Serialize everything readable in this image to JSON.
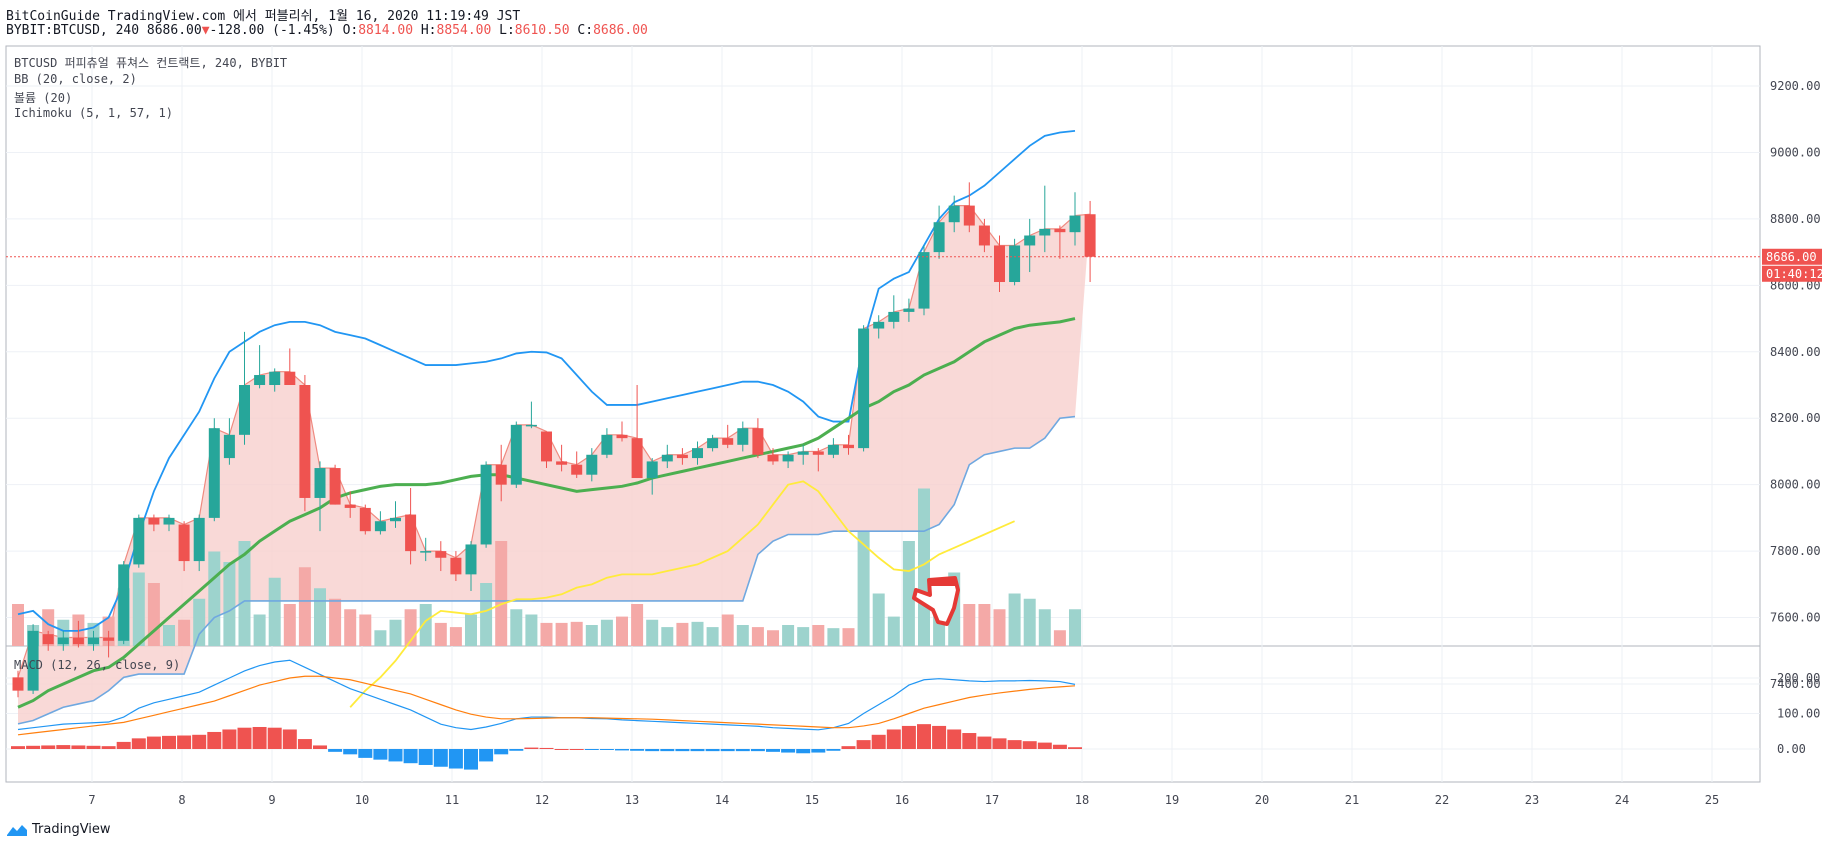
{
  "header": {
    "line1": "BitCoinGuide TradingView.com 에서 퍼블리쉬, 1월 16, 2020 11:19:49 JST",
    "symbol": "BYBIT:BTCUSD, 240",
    "last": "8686.00",
    "change": "-128.00 (-1.45%)",
    "o_label": "O:",
    "o": "8814.00",
    "h_label": "H:",
    "h": "8854.00",
    "l_label": "L:",
    "l": "8610.50",
    "c_label": "C:",
    "c": "8686.00",
    "down_arrow": "▼"
  },
  "legend": {
    "main": "BTCUSD 퍼피츄얼 퓨쳐스 컨트랙트, 240, BYBIT",
    "bb": "BB (20, close, 2)",
    "volume": "볼륨 (20)",
    "ichimoku": "Ichimoku (5, 1, 57, 1)",
    "macd": "MACD (12, 26, close, 9)"
  },
  "price_badge": "8686.00",
  "timer_badge": "01:40:12",
  "footer_brand": "TradingView",
  "colors": {
    "up": "#26a69a",
    "down": "#ef5350",
    "bb": "#2196f3",
    "ma": "#4caf50",
    "kumo_line": "#ef8a80",
    "kumo_fill": "#f8cfcd",
    "yellow": "#ffeb3b",
    "blue_line": "#6fa8e0",
    "vol_up": "#9dd3cd",
    "vol_down": "#f4a9a7",
    "macd": "#2196f3",
    "signal": "#ff7f0e",
    "hist_up": "#ef5350",
    "hist_down": "#2196f3"
  },
  "chart_data": {
    "type": "candlestick",
    "price_axis": {
      "ticks": [
        "9200.00",
        "9000.00",
        "8800.00",
        "8600.00",
        "8400.00",
        "8200.00",
        "8000.00",
        "7800.00",
        "7600.00",
        "7400.00"
      ]
    },
    "macd_axis": {
      "ticks": [
        "200.00",
        "100.00",
        "0.00"
      ]
    },
    "x_ticks": [
      "7",
      "8",
      "9",
      "10",
      "11",
      "12",
      "13",
      "14",
      "15",
      "16",
      "17",
      "18",
      "19",
      "20",
      "21",
      "22",
      "23",
      "24",
      "25"
    ],
    "candles": [
      {
        "o": 7420,
        "h": 7440,
        "l": 7360,
        "c": 7380
      },
      {
        "o": 7380,
        "h": 7580,
        "l": 7370,
        "c": 7560
      },
      {
        "o": 7550,
        "h": 7560,
        "l": 7500,
        "c": 7520
      },
      {
        "o": 7520,
        "h": 7560,
        "l": 7500,
        "c": 7540
      },
      {
        "o": 7540,
        "h": 7590,
        "l": 7510,
        "c": 7520
      },
      {
        "o": 7520,
        "h": 7560,
        "l": 7500,
        "c": 7540
      },
      {
        "o": 7540,
        "h": 7560,
        "l": 7480,
        "c": 7530
      },
      {
        "o": 7530,
        "h": 7770,
        "l": 7520,
        "c": 7760
      },
      {
        "o": 7760,
        "h": 7910,
        "l": 7750,
        "c": 7900
      },
      {
        "o": 7900,
        "h": 7910,
        "l": 7860,
        "c": 7880
      },
      {
        "o": 7880,
        "h": 7910,
        "l": 7860,
        "c": 7900
      },
      {
        "o": 7880,
        "h": 7890,
        "l": 7740,
        "c": 7770
      },
      {
        "o": 7770,
        "h": 7910,
        "l": 7740,
        "c": 7900
      },
      {
        "o": 7900,
        "h": 8200,
        "l": 7890,
        "c": 8170
      },
      {
        "o": 8080,
        "h": 8200,
        "l": 8060,
        "c": 8150
      },
      {
        "o": 8150,
        "h": 8460,
        "l": 8120,
        "c": 8300
      },
      {
        "o": 8300,
        "h": 8420,
        "l": 8290,
        "c": 8330
      },
      {
        "o": 8300,
        "h": 8350,
        "l": 8280,
        "c": 8340
      },
      {
        "o": 8340,
        "h": 8410,
        "l": 8300,
        "c": 8300
      },
      {
        "o": 8300,
        "h": 8330,
        "l": 7920,
        "c": 7960
      },
      {
        "o": 7960,
        "h": 8070,
        "l": 7860,
        "c": 8050
      },
      {
        "o": 8050,
        "h": 8060,
        "l": 7940,
        "c": 7940
      },
      {
        "o": 7940,
        "h": 7980,
        "l": 7900,
        "c": 7930
      },
      {
        "o": 7930,
        "h": 7940,
        "l": 7850,
        "c": 7860
      },
      {
        "o": 7860,
        "h": 7920,
        "l": 7850,
        "c": 7890
      },
      {
        "o": 7890,
        "h": 7950,
        "l": 7870,
        "c": 7900
      },
      {
        "o": 7910,
        "h": 7990,
        "l": 7760,
        "c": 7800
      },
      {
        "o": 7800,
        "h": 7840,
        "l": 7770,
        "c": 7800
      },
      {
        "o": 7800,
        "h": 7830,
        "l": 7740,
        "c": 7780
      },
      {
        "o": 7780,
        "h": 7800,
        "l": 7710,
        "c": 7730
      },
      {
        "o": 7730,
        "h": 7830,
        "l": 7680,
        "c": 7820
      },
      {
        "o": 7820,
        "h": 8070,
        "l": 7810,
        "c": 8060
      },
      {
        "o": 8060,
        "h": 8120,
        "l": 7950,
        "c": 8000
      },
      {
        "o": 8000,
        "h": 8190,
        "l": 7990,
        "c": 8180
      },
      {
        "o": 8180,
        "h": 8250,
        "l": 8170,
        "c": 8180
      },
      {
        "o": 8160,
        "h": 8160,
        "l": 8050,
        "c": 8070
      },
      {
        "o": 8070,
        "h": 8120,
        "l": 8040,
        "c": 8060
      },
      {
        "o": 8060,
        "h": 8100,
        "l": 8020,
        "c": 8030
      },
      {
        "o": 8030,
        "h": 8110,
        "l": 8010,
        "c": 8090
      },
      {
        "o": 8090,
        "h": 8170,
        "l": 8080,
        "c": 8150
      },
      {
        "o": 8150,
        "h": 8190,
        "l": 8130,
        "c": 8140
      },
      {
        "o": 8140,
        "h": 8300,
        "l": 8020,
        "c": 8020
      },
      {
        "o": 8020,
        "h": 8080,
        "l": 7970,
        "c": 8070
      },
      {
        "o": 8070,
        "h": 8120,
        "l": 8050,
        "c": 8090
      },
      {
        "o": 8090,
        "h": 8110,
        "l": 8060,
        "c": 8080
      },
      {
        "o": 8080,
        "h": 8130,
        "l": 8060,
        "c": 8110
      },
      {
        "o": 8110,
        "h": 8150,
        "l": 8100,
        "c": 8140
      },
      {
        "o": 8140,
        "h": 8180,
        "l": 8110,
        "c": 8120
      },
      {
        "o": 8120,
        "h": 8190,
        "l": 8100,
        "c": 8170
      },
      {
        "o": 8170,
        "h": 8200,
        "l": 8080,
        "c": 8090
      },
      {
        "o": 8090,
        "h": 8110,
        "l": 8060,
        "c": 8070
      },
      {
        "o": 8070,
        "h": 8100,
        "l": 8050,
        "c": 8090
      },
      {
        "o": 8090,
        "h": 8120,
        "l": 8060,
        "c": 8100
      },
      {
        "o": 8100,
        "h": 8110,
        "l": 8040,
        "c": 8090
      },
      {
        "o": 8090,
        "h": 8140,
        "l": 8080,
        "c": 8120
      },
      {
        "o": 8120,
        "h": 8150,
        "l": 8090,
        "c": 8110
      },
      {
        "o": 8110,
        "h": 8480,
        "l": 8100,
        "c": 8470
      },
      {
        "o": 8470,
        "h": 8510,
        "l": 8440,
        "c": 8490
      },
      {
        "o": 8490,
        "h": 8570,
        "l": 8470,
        "c": 8520
      },
      {
        "o": 8520,
        "h": 8560,
        "l": 8490,
        "c": 8530
      },
      {
        "o": 8530,
        "h": 8720,
        "l": 8510,
        "c": 8700
      },
      {
        "o": 8700,
        "h": 8840,
        "l": 8680,
        "c": 8790
      },
      {
        "o": 8790,
        "h": 8870,
        "l": 8760,
        "c": 8840
      },
      {
        "o": 8840,
        "h": 8910,
        "l": 8760,
        "c": 8780
      },
      {
        "o": 8780,
        "h": 8800,
        "l": 8700,
        "c": 8720
      },
      {
        "o": 8720,
        "h": 8750,
        "l": 8580,
        "c": 8610
      },
      {
        "o": 8610,
        "h": 8740,
        "l": 8600,
        "c": 8720
      },
      {
        "o": 8720,
        "h": 8800,
        "l": 8640,
        "c": 8750
      },
      {
        "o": 8750,
        "h": 8900,
        "l": 8700,
        "c": 8770
      },
      {
        "o": 8770,
        "h": 8780,
        "l": 8680,
        "c": 8760
      },
      {
        "o": 8760,
        "h": 8880,
        "l": 8720,
        "c": 8810
      },
      {
        "o": 8814,
        "h": 8854,
        "l": 8610,
        "c": 8686
      }
    ],
    "volume": [
      40,
      20,
      35,
      25,
      30,
      22,
      28,
      55,
      70,
      60,
      20,
      25,
      45,
      90,
      80,
      100,
      30,
      65,
      40,
      75,
      55,
      45,
      35,
      30,
      15,
      25,
      35,
      40,
      22,
      18,
      30,
      60,
      100,
      35,
      30,
      22,
      22,
      23,
      20,
      25,
      28,
      40,
      25,
      18,
      22,
      23,
      18,
      30,
      20,
      18,
      15,
      20,
      18,
      20,
      17,
      17,
      110,
      50,
      28,
      100,
      150,
      50,
      70,
      40,
      40,
      35,
      50,
      45,
      35,
      15,
      35
    ],
    "bb_upper": [
      7610,
      7620,
      7580,
      7560,
      7560,
      7570,
      7600,
      7700,
      7850,
      7980,
      8080,
      8150,
      8220,
      8320,
      8400,
      8430,
      8460,
      8480,
      8490,
      8490,
      8480,
      8460,
      8450,
      8440,
      8420,
      8400,
      8380,
      8360,
      8360,
      8360,
      8365,
      8370,
      8380,
      8395,
      8400,
      8398,
      8380,
      8330,
      8280,
      8240,
      8240,
      8240,
      8250,
      8260,
      8270,
      8280,
      8290,
      8300,
      8310,
      8310,
      8300,
      8280,
      8250,
      8205,
      8190,
      8190,
      8430,
      8590,
      8620,
      8640,
      8720,
      8800,
      8850,
      8870,
      8900,
      8940,
      8980,
      9020,
      9050,
      9060,
      9065
    ],
    "bb_lower": [
      7280,
      7290,
      7310,
      7330,
      7340,
      7350,
      7380,
      7420,
      7430,
      7430,
      7430,
      7430,
      7550,
      7600,
      7620,
      7650,
      7650,
      7650,
      7650,
      7650,
      7650,
      7650,
      7650,
      7650,
      7650,
      7650,
      7650,
      7650,
      7650,
      7650,
      7650,
      7650,
      7650,
      7650,
      7650,
      7650,
      7650,
      7650,
      7650,
      7650,
      7650,
      7650,
      7650,
      7650,
      7650,
      7650,
      7650,
      7650,
      7650,
      7790,
      7830,
      7850,
      7850,
      7850,
      7860,
      7860,
      7860,
      7860,
      7860,
      7860,
      7860,
      7880,
      7940,
      8060,
      8090,
      8100,
      8110,
      8110,
      8140,
      8200,
      8205
    ],
    "ma_mid": [
      7330,
      7350,
      7380,
      7400,
      7420,
      7440,
      7450,
      7480,
      7520,
      7560,
      7600,
      7640,
      7680,
      7720,
      7760,
      7790,
      7830,
      7860,
      7890,
      7910,
      7930,
      7960,
      7975,
      7985,
      7995,
      8000,
      8000,
      8000,
      8005,
      8015,
      8025,
      8030,
      8030,
      8020,
      8010,
      8000,
      7990,
      7980,
      7985,
      7990,
      7995,
      8005,
      8020,
      8030,
      8040,
      8050,
      8060,
      8070,
      8080,
      8090,
      8100,
      8110,
      8120,
      8140,
      8170,
      8200,
      8230,
      8250,
      8280,
      8300,
      8330,
      8350,
      8370,
      8400,
      8430,
      8450,
      8470,
      8480,
      8485,
      8490,
      8500
    ],
    "yellow": [
      null,
      null,
      null,
      null,
      null,
      null,
      null,
      null,
      null,
      null,
      null,
      null,
      null,
      null,
      null,
      null,
      null,
      null,
      null,
      null,
      null,
      null,
      7330,
      7380,
      7420,
      7470,
      7530,
      7590,
      7620,
      7615,
      7610,
      7620,
      7640,
      7655,
      7655,
      7660,
      7670,
      7690,
      7700,
      7720,
      7730,
      7730,
      7730,
      7740,
      7750,
      7760,
      7780,
      7800,
      7840,
      7880,
      7940,
      8000,
      8010,
      7980,
      7920,
      7860,
      7820,
      7780,
      7745,
      7740,
      7760,
      7790,
      7810,
      7830,
      7850,
      7870,
      7890
    ],
    "macd": [
      55,
      60,
      65,
      70,
      72,
      74,
      76,
      90,
      115,
      130,
      140,
      150,
      160,
      180,
      200,
      220,
      235,
      245,
      250,
      230,
      210,
      190,
      170,
      155,
      140,
      125,
      110,
      90,
      70,
      60,
      55,
      62,
      72,
      85,
      90,
      90,
      88,
      88,
      86,
      85,
      82,
      80,
      78,
      76,
      74,
      72,
      70,
      68,
      66,
      64,
      60,
      58,
      56,
      54,
      60,
      72,
      100,
      125,
      150,
      180,
      195,
      198,
      195,
      192,
      190,
      192,
      192,
      193,
      192,
      190,
      182
    ],
    "signal": [
      40,
      45,
      50,
      55,
      60,
      65,
      70,
      75,
      85,
      95,
      105,
      115,
      125,
      135,
      150,
      165,
      180,
      190,
      200,
      205,
      205,
      200,
      195,
      185,
      175,
      165,
      155,
      140,
      125,
      110,
      98,
      90,
      85,
      85,
      86,
      87,
      88,
      88,
      88,
      87,
      86,
      85,
      84,
      82,
      80,
      78,
      76,
      74,
      72,
      70,
      68,
      66,
      64,
      62,
      60,
      60,
      65,
      72,
      85,
      100,
      115,
      125,
      135,
      145,
      152,
      158,
      163,
      168,
      172,
      175,
      178
    ],
    "hist": [
      8,
      9,
      10,
      11,
      10,
      9,
      8,
      20,
      30,
      35,
      37,
      38,
      40,
      48,
      55,
      60,
      62,
      60,
      55,
      28,
      10,
      -8,
      -15,
      -25,
      -30,
      -35,
      -40,
      -45,
      -50,
      -55,
      -58,
      -35,
      -15,
      -5,
      4,
      3,
      0,
      0,
      -2,
      -2,
      -4,
      -5,
      -6,
      -6,
      -6,
      -6,
      -6,
      -6,
      -6,
      -6,
      -8,
      -10,
      -12,
      -10,
      -5,
      8,
      25,
      40,
      55,
      65,
      70,
      65,
      55,
      45,
      35,
      30,
      25,
      22,
      18,
      12,
      5
    ]
  }
}
